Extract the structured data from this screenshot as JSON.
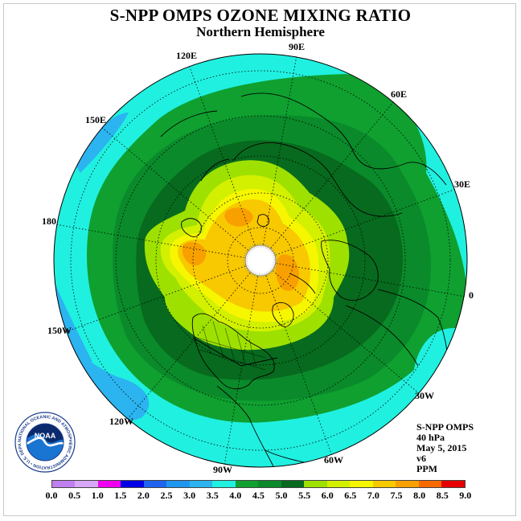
{
  "title": "S-NPP OMPS OZONE MIXING RATIO",
  "subtitle": "Northern Hemisphere",
  "info": {
    "line1": "S-NPP OMPS",
    "line2": "40 hPa",
    "line3": "May 5, 2015",
    "line4": "v6",
    "line5": "PPM"
  },
  "logo": {
    "text": "NOAA",
    "ring_text": "NATIONAL OCEANIC AND ATMOSPHERIC ADMINISTRATION • U.S. DEPARTMENT OF COMMERCE •"
  },
  "longitude_labels": [
    {
      "text": "90E"
    },
    {
      "text": "120E"
    },
    {
      "text": "60E"
    },
    {
      "text": "150E"
    },
    {
      "text": "30E"
    },
    {
      "text": "180"
    },
    {
      "text": "0"
    },
    {
      "text": "150W"
    },
    {
      "text": "30W"
    },
    {
      "text": "120W"
    },
    {
      "text": "60W"
    },
    {
      "text": "90W"
    }
  ],
  "colorbar": {
    "ticks": [
      "0.0",
      "0.5",
      "1.0",
      "1.5",
      "2.0",
      "2.5",
      "3.0",
      "3.5",
      "4.0",
      "4.5",
      "5.0",
      "5.5",
      "6.0",
      "6.5",
      "7.0",
      "7.5",
      "8.0",
      "8.5",
      "9.0"
    ],
    "colors": [
      "#c07ff0",
      "#d8a8f8",
      "#f000f0",
      "#0000e6",
      "#1f64f0",
      "#1e96f0",
      "#2bb4f0",
      "#20f0e0",
      "#0fa030",
      "#0a8a2a",
      "#076a1e",
      "#9ee000",
      "#d2f000",
      "#f6f600",
      "#f8c800",
      "#f8a000",
      "#f86a00",
      "#e60000",
      "#7a4a2a"
    ]
  },
  "chart_data": {
    "type": "heatmap",
    "title": "S-NPP OMPS OZONE MIXING RATIO",
    "subtitle": "Northern Hemisphere",
    "projection": "north polar stereographic",
    "variable": "ozone mixing ratio",
    "units": "PPM",
    "pressure_level": "40 hPa",
    "date": "May 5, 2015",
    "levels": [
      0.0,
      0.5,
      1.0,
      1.5,
      2.0,
      2.5,
      3.0,
      3.5,
      4.0,
      4.5,
      5.0,
      5.5,
      6.0,
      6.5,
      7.0,
      7.5,
      8.0,
      8.5,
      9.0
    ],
    "missing_region": "north pole (no data)",
    "value_range_shown": [
      3.0,
      7.5
    ],
    "features": [
      {
        "region": "mid-latitude belt",
        "value_range": [
          4.0,
          5.0
        ]
      },
      {
        "region": "tropics / outer ring",
        "value_range": [
          3.5,
          4.0
        ]
      },
      {
        "region": "subtropical Pacific",
        "value_range": [
          3.0,
          3.5
        ]
      },
      {
        "region": "polar cap",
        "value_range": [
          5.0,
          7.5
        ]
      }
    ]
  }
}
